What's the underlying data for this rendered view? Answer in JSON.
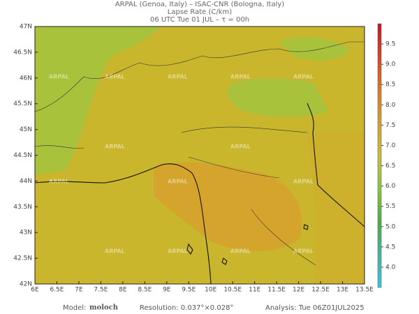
{
  "header": {
    "line1": "ARPAL (Genoa, Italy)  –  ISAC-CNR (Bologna, Italy)",
    "line2": "Lapse Rate (C/km)",
    "line3": "06 UTC Tue 01 JUL  –  τ = 00h"
  },
  "map": {
    "lon_ticks": [
      "6E",
      "6.5E",
      "7E",
      "7.5E",
      "8E",
      "8.5E",
      "9E",
      "9.5E",
      "10E",
      "10.5E",
      "11E",
      "11.5E",
      "12E",
      "12.5E",
      "13E",
      "13.5E"
    ],
    "lat_ticks": [
      "47N",
      "46.5N",
      "46N",
      "45.5N",
      "45N",
      "44.5N",
      "44N",
      "43.5N",
      "43N",
      "42.5N",
      "42N"
    ],
    "watermark": "ARPAL"
  },
  "colorbar": {
    "range": [
      3.5,
      10
    ],
    "ticks": [
      {
        "value": 9.5,
        "label": "9.5"
      },
      {
        "value": 9,
        "label": "9.0"
      },
      {
        "value": 8.5,
        "label": "8.5"
      },
      {
        "value": 8,
        "label": "8.0"
      },
      {
        "value": 7.5,
        "label": "7.5"
      },
      {
        "value": 7,
        "label": "7.0"
      },
      {
        "value": 6.5,
        "label": "6.5"
      },
      {
        "value": 6,
        "label": "6.0"
      },
      {
        "value": 5.5,
        "label": "5.5"
      },
      {
        "value": 5,
        "label": "5.0"
      },
      {
        "value": 4.5,
        "label": "4.5"
      },
      {
        "value": 4,
        "label": "4.0"
      }
    ]
  },
  "footer": {
    "model_label": "Model:",
    "model": "moloch",
    "resolution": "Resolution: 0.037°×0.028°",
    "analysis": "Analysis: Tue 06Z01JUL2025"
  }
}
